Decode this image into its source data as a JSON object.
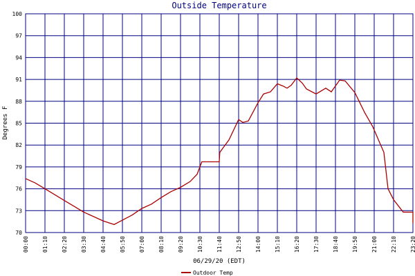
{
  "chart_data": {
    "type": "line",
    "title": "Outside Temperature",
    "xlabel": "06/29/20 (EDT)",
    "ylabel": "Degrees F",
    "x": [
      0,
      35,
      70,
      105,
      140,
      175,
      210,
      245,
      280,
      320,
      350,
      385,
      420,
      455,
      490,
      525,
      560,
      595,
      620,
      637,
      700,
      702,
      735,
      770,
      785,
      805,
      840,
      860,
      885,
      910,
      930,
      945,
      960,
      980,
      1000,
      1015,
      1050,
      1085,
      1105,
      1135,
      1155,
      1190,
      1225,
      1255,
      1280,
      1295,
      1310,
      1330,
      1365,
      1400,
      1400
    ],
    "series": [
      {
        "name": "Outdoor Temp",
        "color": "#aa0000",
        "values": [
          77.4,
          76.8,
          76.0,
          75.2,
          74.4,
          73.6,
          72.8,
          72.2,
          71.6,
          71.1,
          71.7,
          72.4,
          73.3,
          73.9,
          74.8,
          75.6,
          76.2,
          77.0,
          78.0,
          79.7,
          79.7,
          81.0,
          82.7,
          85.5,
          85.1,
          85.3,
          87.8,
          89.0,
          89.3,
          90.4,
          90.1,
          89.8,
          90.2,
          91.2,
          90.5,
          89.7,
          89.0,
          89.8,
          89.3,
          90.9,
          90.8,
          89.2,
          86.5,
          84.5,
          82.3,
          81.0,
          76.0,
          74.5,
          72.8,
          72.8,
          71.3
        ]
      }
    ],
    "xlim": [
      0,
      1400
    ],
    "xticks": [
      {
        "value": 0,
        "label": "00:00"
      },
      {
        "value": 70,
        "label": "01:10"
      },
      {
        "value": 140,
        "label": "02:20"
      },
      {
        "value": 210,
        "label": "03:30"
      },
      {
        "value": 280,
        "label": "04:40"
      },
      {
        "value": 350,
        "label": "05:50"
      },
      {
        "value": 420,
        "label": "07:00"
      },
      {
        "value": 490,
        "label": "08:10"
      },
      {
        "value": 560,
        "label": "09:20"
      },
      {
        "value": 630,
        "label": "10:30"
      },
      {
        "value": 700,
        "label": "11:40"
      },
      {
        "value": 770,
        "label": "12:50"
      },
      {
        "value": 840,
        "label": "14:00"
      },
      {
        "value": 910,
        "label": "15:10"
      },
      {
        "value": 980,
        "label": "16:20"
      },
      {
        "value": 1050,
        "label": "17:30"
      },
      {
        "value": 1120,
        "label": "18:40"
      },
      {
        "value": 1190,
        "label": "19:50"
      },
      {
        "value": 1260,
        "label": "21:00"
      },
      {
        "value": 1330,
        "label": "22:10"
      },
      {
        "value": 1400,
        "label": "23:20"
      }
    ],
    "ylim": [
      70,
      100
    ],
    "yticks": [
      70,
      73,
      76,
      79,
      82,
      85,
      88,
      91,
      94,
      97,
      100
    ],
    "grid": true,
    "grid_color": "#000080"
  }
}
